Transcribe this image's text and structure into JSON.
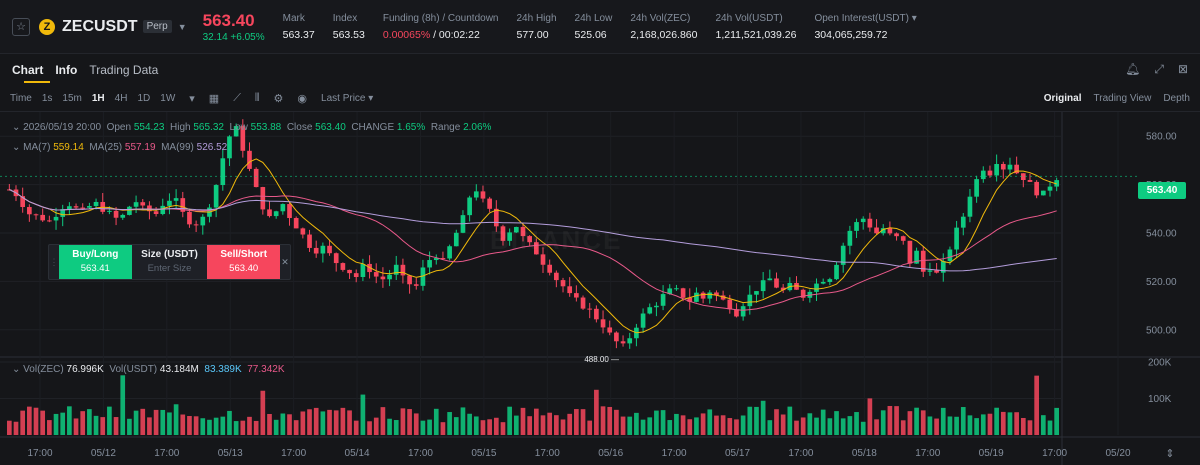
{
  "header": {
    "symbol": "ZECUSDT",
    "badge": "Perp",
    "coin_icon_text": "Z",
    "price": "563.40",
    "change": "32.14 +6.05%",
    "stats": [
      {
        "key": "Mark",
        "value": "563.37"
      },
      {
        "key": "Index",
        "value": "563.53"
      },
      {
        "key": "Funding (8h) / Countdown",
        "value_red": "0.00065%",
        "value_rest": " / 00:02:22"
      },
      {
        "key": "24h High",
        "value": "577.00"
      },
      {
        "key": "24h Low",
        "value": "525.06"
      },
      {
        "key": "24h Vol(ZEC)",
        "value": "2,168,026.860"
      },
      {
        "key": "24h Vol(USDT)",
        "value": "1,211,521,039.26"
      },
      {
        "key": "Open Interest(USDT)",
        "value": "304,065,259.72"
      }
    ]
  },
  "tabs": [
    "Chart",
    "Info",
    "Trading Data"
  ],
  "toolbar": {
    "time_label": "Time",
    "intervals": [
      "1s",
      "15m",
      "1H",
      "4H",
      "1D",
      "1W"
    ],
    "selected_interval": "1H",
    "price_type": "Last Price",
    "views": [
      "Original",
      "Trading View",
      "Depth"
    ],
    "selected_view": "Original"
  },
  "ohlc": {
    "date": "2026/05/19 20:00",
    "open_label": "Open",
    "open": "554.23",
    "high_label": "High",
    "high": "565.32",
    "low_label": "Low",
    "low": "553.88",
    "close_label": "Close",
    "close": "563.40",
    "change_label": "CHANGE",
    "change": "1.65%",
    "range_label": "Range",
    "range": "2.06%"
  },
  "ma": {
    "ma7_label": "MA(7)",
    "ma7": "559.14",
    "ma25_label": "MA(25)",
    "ma25": "557.19",
    "ma99_label": "MA(99)",
    "ma99": "526.52"
  },
  "vol": {
    "zec_label": "Vol(ZEC)",
    "zec": "76.996K",
    "usdt_label": "Vol(USDT)",
    "usdt": "43.184M",
    "v1": "83.389K",
    "v2": "77.342K"
  },
  "order_panel": {
    "buy_label": "Buy/Long",
    "buy_price": "563.41",
    "size_label": "Size (USDT)",
    "size_placeholder": "Enter Size",
    "sell_label": "Sell/Short",
    "sell_price": "563.40"
  },
  "current_price_tag": "563.40",
  "watermark": "BINANCE",
  "colors": {
    "up": "#0ecb81",
    "down": "#f6465d",
    "ma7": "#f0b90b",
    "ma25": "#e8598a",
    "ma99": "#b39ddb",
    "vol_ma": "#5ac8fa"
  },
  "chart_data": {
    "type": "candlestick",
    "interval": "1H",
    "price_axis_ticks": [
      "580.00",
      "560.00",
      "540.00",
      "520.00",
      "500.00"
    ],
    "price_range": [
      490,
      590
    ],
    "volume_axis_ticks": [
      "200K",
      "100K"
    ],
    "time_axis_ticks": [
      "17:00",
      "05/12",
      "17:00",
      "05/13",
      "17:00",
      "05/14",
      "17:00",
      "05/15",
      "17:00",
      "05/16",
      "17:00",
      "05/17",
      "17:00",
      "05/18",
      "17:00",
      "05/19",
      "17:00",
      "05/20"
    ],
    "marked_high": "591.87",
    "marked_low": "488.00",
    "close_path": [
      558,
      556,
      552,
      548,
      547,
      546,
      545,
      548,
      551,
      552,
      550,
      549,
      551,
      552,
      550,
      548,
      546,
      547,
      551,
      553,
      550,
      549,
      548,
      552,
      554,
      553,
      548,
      545,
      544,
      546,
      552,
      560,
      571,
      580,
      583,
      575,
      566,
      558,
      551,
      546,
      549,
      552,
      547,
      543,
      539,
      535,
      533,
      534,
      531,
      528,
      526,
      524,
      522,
      526,
      525,
      522,
      521,
      523,
      526,
      521,
      519,
      518,
      525,
      529,
      531,
      528,
      534,
      540,
      546,
      555,
      558,
      553,
      549,
      543,
      538,
      541,
      543,
      538,
      535,
      532,
      528,
      525,
      521,
      518,
      514,
      512,
      510,
      508,
      505,
      502,
      498,
      495,
      493,
      497,
      502,
      506,
      509,
      511,
      514,
      516,
      516,
      514,
      512,
      515,
      513,
      516,
      514,
      512,
      510,
      507,
      511,
      514,
      517,
      519,
      521,
      518,
      516,
      518,
      516,
      514,
      517,
      519,
      521,
      522,
      528,
      535,
      541,
      544,
      546,
      543,
      540,
      542,
      539,
      538,
      536,
      528,
      532,
      524,
      526,
      523,
      527,
      534,
      541,
      547,
      556,
      562,
      567,
      565,
      570,
      567,
      569,
      565,
      563,
      560,
      557,
      556,
      560,
      563
    ],
    "volume_scale_max": 200000
  }
}
